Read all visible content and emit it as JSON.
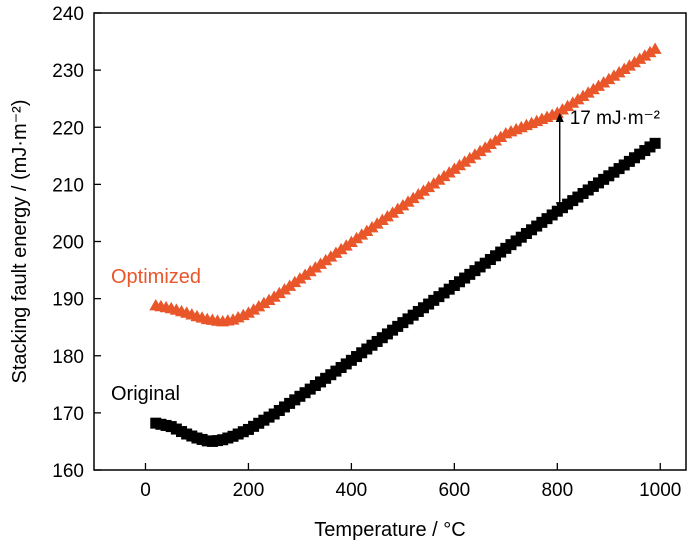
{
  "chart_data": {
    "type": "scatter",
    "xlabel": "Temperature / °C",
    "ylabel": "Stacking fault energy / (mJ·m⁻²)",
    "xlim": [
      -100,
      1050
    ],
    "ylim": [
      160,
      240
    ],
    "xticks": [
      0,
      200,
      400,
      600,
      800,
      1000
    ],
    "yticks": [
      160,
      170,
      180,
      190,
      200,
      210,
      220,
      230,
      240
    ],
    "xtick_labels": [
      "0",
      "200",
      "400",
      "600",
      "800",
      "1000"
    ],
    "ytick_labels": [
      "160",
      "170",
      "180",
      "190",
      "200",
      "210",
      "220",
      "230",
      "240"
    ],
    "grid": false,
    "series": [
      {
        "name": "Optimized",
        "marker": "triangle",
        "color": "#E8562A",
        "x": [
          20,
          50,
          80,
          100,
          120,
          140,
          150,
          170,
          200,
          250,
          300,
          400,
          500,
          600,
          700,
          800,
          900,
          995
        ],
        "y": [
          188.8,
          188.3,
          187.5,
          186.9,
          186.4,
          186.1,
          186.0,
          186.3,
          187.5,
          190.3,
          193.5,
          199.9,
          206.3,
          212.7,
          218.9,
          222.5,
          228.4,
          234.0
        ]
      },
      {
        "name": "Original",
        "marker": "square",
        "color": "#000000",
        "x": [
          20,
          50,
          80,
          100,
          120,
          130,
          150,
          170,
          200,
          250,
          300,
          400,
          500,
          600,
          700,
          800,
          900,
          995
        ],
        "y": [
          168.2,
          167.6,
          166.3,
          165.6,
          165.1,
          165.0,
          165.3,
          165.9,
          167.1,
          169.8,
          172.9,
          179.2,
          185.8,
          192.3,
          198.8,
          205.3,
          211.5,
          217.5
        ]
      }
    ],
    "annotations": [
      {
        "text": "17 mJ·m⁻²",
        "x": 795,
        "y_from": 205.3,
        "y_to": 222.5
      }
    ]
  }
}
